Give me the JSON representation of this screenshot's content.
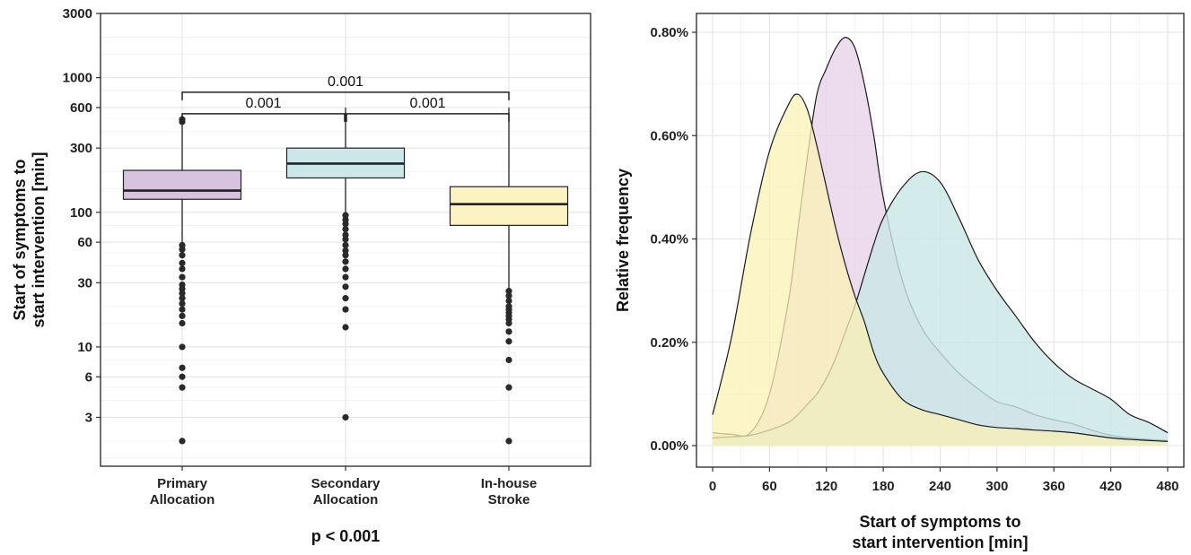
{
  "chart_data": [
    {
      "type": "box",
      "ylabel_lines": [
        "Start of symptoms to",
        "start intervention [min]"
      ],
      "xlabel": "p < 0.001",
      "y_scale": "log",
      "ylim": [
        1.3,
        3000
      ],
      "yticks": [
        3,
        6,
        10,
        30,
        60,
        100,
        300,
        600,
        1000,
        3000
      ],
      "ytick_labels": [
        "3",
        "6",
        "10",
        "30",
        "60",
        "100",
        "300",
        "600",
        "1000",
        "3000"
      ],
      "grid": true,
      "categories": [
        {
          "label_lines": [
            "Primary",
            "Allocation"
          ],
          "q1": 125,
          "median": 145,
          "q3": 205,
          "whisker_low": 60,
          "whisker_high": 480,
          "color": "#d7c3df",
          "outliers": [
            2,
            5,
            6,
            7,
            10,
            15,
            17,
            19,
            21,
            23,
            25,
            27,
            29,
            33,
            38,
            42,
            48,
            53,
            57,
            470,
            490
          ]
        },
        {
          "label_lines": [
            "Secondary",
            "Allocation"
          ],
          "q1": 180,
          "median": 230,
          "q3": 300,
          "whisker_low": 100,
          "whisker_high": 600,
          "color": "#cce7e7",
          "outliers": [
            3,
            14,
            19,
            23,
            28,
            33,
            38,
            43,
            48,
            52,
            57,
            63,
            68,
            75,
            82,
            88,
            95
          ]
        },
        {
          "label_lines": [
            "In-house",
            "Stroke"
          ],
          "q1": 80,
          "median": 115,
          "q3": 155,
          "whisker_low": 27,
          "whisker_high": 600,
          "color": "#fbf4c2",
          "outliers": [
            2,
            5,
            8,
            11,
            13,
            15,
            16,
            17,
            18,
            19,
            20,
            22,
            24,
            26
          ]
        }
      ],
      "comparisons": [
        {
          "from": 0,
          "to": 2,
          "label": "0.001",
          "level": 780
        },
        {
          "from": 0,
          "to": 1,
          "label": "0.001",
          "level": 540
        },
        {
          "from": 1,
          "to": 2,
          "label": "0.001",
          "level": 540
        }
      ]
    },
    {
      "type": "area",
      "ylabel": "Relative frequency",
      "xlabel_lines": [
        "Start of symptoms to",
        "start intervention [min]"
      ],
      "xlim": [
        0,
        480
      ],
      "ylim": [
        0,
        0.008
      ],
      "xticks": [
        0,
        60,
        120,
        180,
        240,
        300,
        360,
        420,
        480
      ],
      "xtick_labels": [
        "0",
        "60",
        "120",
        "180",
        "240",
        "300",
        "360",
        "420",
        "480"
      ],
      "yticks": [
        0,
        0.002,
        0.004,
        0.006,
        0.008
      ],
      "ytick_labels": [
        "0.00%",
        "0.20%",
        "0.40%",
        "0.60%",
        "0.80%"
      ],
      "grid": true,
      "x": [
        0,
        20,
        40,
        60,
        80,
        90,
        100,
        110,
        120,
        130,
        140,
        150,
        160,
        170,
        180,
        200,
        220,
        240,
        260,
        280,
        300,
        320,
        340,
        360,
        380,
        400,
        420,
        440,
        460,
        480
      ],
      "series": [
        {
          "color": "#e8d2ea",
          "opacity": 0.8,
          "values": [
            0.00025,
            0.00022,
            0.00025,
            0.001,
            0.0028,
            0.0042,
            0.0056,
            0.0068,
            0.0073,
            0.0077,
            0.0079,
            0.0077,
            0.007,
            0.006,
            0.0048,
            0.0032,
            0.0023,
            0.0018,
            0.0014,
            0.0011,
            0.00085,
            0.00075,
            0.0006,
            0.0005,
            0.00042,
            0.0003,
            0.0002,
            0.00015,
            0.00012,
            0.0001
          ]
        },
        {
          "color": "#c9e6e6",
          "opacity": 0.8,
          "values": [
            0.00015,
            0.00017,
            0.0002,
            0.0003,
            0.00045,
            0.0006,
            0.0008,
            0.001,
            0.0013,
            0.0017,
            0.0022,
            0.0027,
            0.0033,
            0.0039,
            0.0044,
            0.005,
            0.0053,
            0.0051,
            0.0044,
            0.0036,
            0.003,
            0.0025,
            0.002,
            0.0016,
            0.0013,
            0.0011,
            0.0009,
            0.0006,
            0.00045,
            0.00025
          ]
        },
        {
          "color": "#faf2b4",
          "opacity": 0.75,
          "values": [
            0.0006,
            0.0021,
            0.0041,
            0.0057,
            0.0066,
            0.0068,
            0.0065,
            0.0058,
            0.005,
            0.0042,
            0.0035,
            0.0029,
            0.0024,
            0.0018,
            0.0014,
            0.0009,
            0.0007,
            0.0006,
            0.0005,
            0.0004,
            0.00035,
            0.00033,
            0.0003,
            0.00028,
            0.00025,
            0.0002,
            0.00015,
            0.00012,
            0.0001,
            8e-05
          ]
        }
      ]
    }
  ]
}
